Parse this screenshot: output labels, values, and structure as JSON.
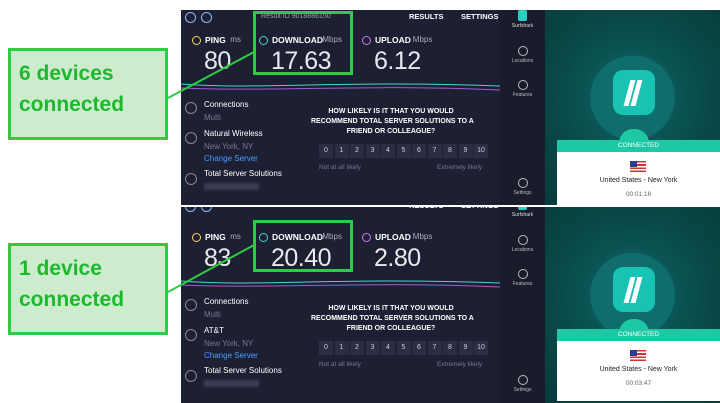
{
  "callouts": [
    {
      "line1": "6 devices",
      "line2": "connected"
    },
    {
      "line1": "1 device",
      "line2": "connected"
    }
  ],
  "speedtest": [
    {
      "result_id": "Result ID 9018886150",
      "results": "RESULTS",
      "settings": "SETTINGS",
      "ping_label": "PING",
      "ping_unit": "ms",
      "ping": "80",
      "download_label": "DOWNLOAD",
      "download_unit": "Mbps",
      "download": "17.63",
      "upload_label": "UPLOAD",
      "upload_unit": "Mbps",
      "upload": "6.12",
      "connections": "Connections",
      "connections_mode": "Multi",
      "isp": "Natural Wireless",
      "city": "New York, NY",
      "change_server": "Change Server",
      "server": "Total Server Solutions",
      "question": [
        "HOW LIKELY IS IT THAT YOU WOULD",
        "RECOMMEND TOTAL SERVER SOLUTIONS TO A",
        "FRIEND OR COLLEAGUE?"
      ],
      "scale": [
        "0",
        "1",
        "2",
        "3",
        "4",
        "5",
        "6",
        "7",
        "8",
        "9",
        "10"
      ],
      "scale_low": "Not at all likely",
      "scale_high": "Extremely likely"
    },
    {
      "results": "RESULTS",
      "settings": "SETTINGS",
      "ping_label": "PING",
      "ping_unit": "ms",
      "ping": "83",
      "download_label": "DOWNLOAD",
      "download_unit": "Mbps",
      "download": "20.40",
      "upload_label": "UPLOAD",
      "upload_unit": "Mbps",
      "upload": "2.80",
      "connections": "Connections",
      "connections_mode": "Multi",
      "isp": "AT&T",
      "city": "New York, NY",
      "change_server": "Change Server",
      "server": "Total Server Solutions",
      "question": [
        "HOW LIKELY IS IT THAT YOU WOULD",
        "RECOMMEND TOTAL SERVER SOLUTIONS TO A",
        "FRIEND OR COLLEAGUE?"
      ],
      "scale": [
        "0",
        "1",
        "2",
        "3",
        "4",
        "5",
        "6",
        "7",
        "8",
        "9",
        "10"
      ],
      "scale_low": "Not at all likely",
      "scale_high": "Extremely likely"
    }
  ],
  "vpn": [
    {
      "app_name": "Surfshark",
      "nav": [
        "Locations",
        "Features",
        "Settings"
      ],
      "status": "CONNECTED",
      "location": "United States - New York",
      "time": "00:01:16"
    },
    {
      "app_name": "Surfshark",
      "nav": [
        "Locations",
        "Features",
        "Settings"
      ],
      "status": "CONNECTED",
      "location": "United States - New York",
      "time": "00:03:47"
    }
  ]
}
